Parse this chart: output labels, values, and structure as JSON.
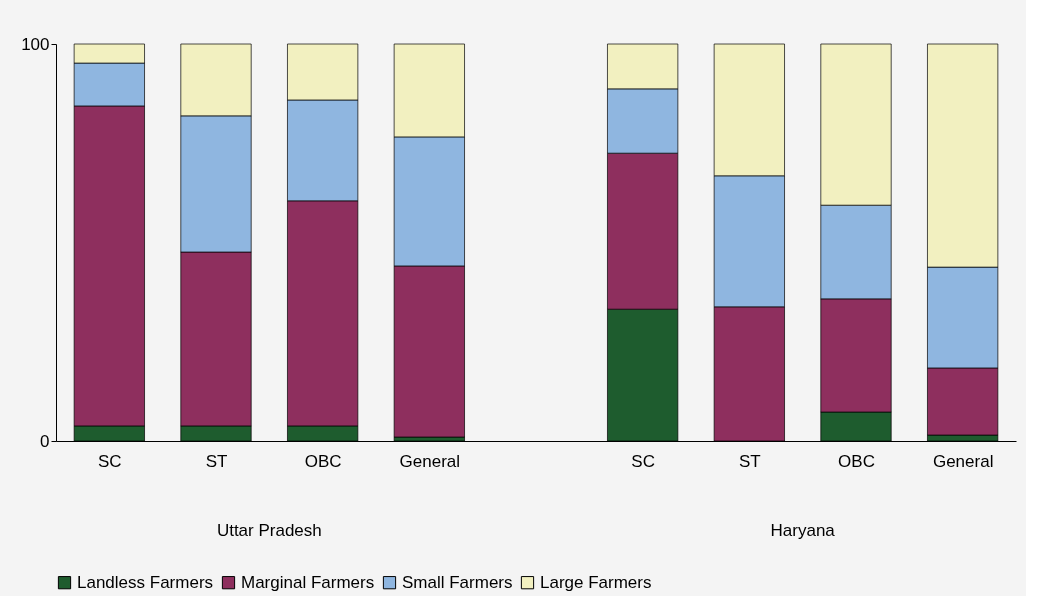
{
  "chart_data": {
    "type": "bar",
    "stacked": true,
    "categories": [
      "SC",
      "ST",
      "OBC",
      "General",
      null,
      "SC",
      "ST",
      "OBC",
      "General"
    ],
    "series": [
      {
        "name": "Landless Farmers",
        "color": "#1e5c2e",
        "values": [
          3.8,
          3.8,
          3.8,
          1,
          null,
          33.2,
          0,
          7.3,
          1.5
        ]
      },
      {
        "name": "Marginal Farmers",
        "color": "#8e2f5e",
        "values": [
          80.6,
          43.8,
          56.7,
          43.1,
          null,
          39.3,
          33.8,
          28.5,
          16.9
        ]
      },
      {
        "name": "Small Farmers",
        "color": "#8fb6e0",
        "values": [
          10.8,
          34.3,
          25.4,
          32.5,
          null,
          16.2,
          33,
          23.6,
          25.4
        ]
      },
      {
        "name": "Large Farmers",
        "color": "#f2f0c0",
        "values": [
          4.8,
          18.1,
          14.1,
          23.4,
          null,
          11.3,
          33.2,
          40.6,
          56.2
        ]
      }
    ],
    "ylim": [
      0,
      100
    ],
    "yticks": [
      0,
      100
    ],
    "grid": false,
    "legend": "bottom",
    "annotations": [
      "Uttar Pradesh",
      "Haryana"
    ]
  }
}
